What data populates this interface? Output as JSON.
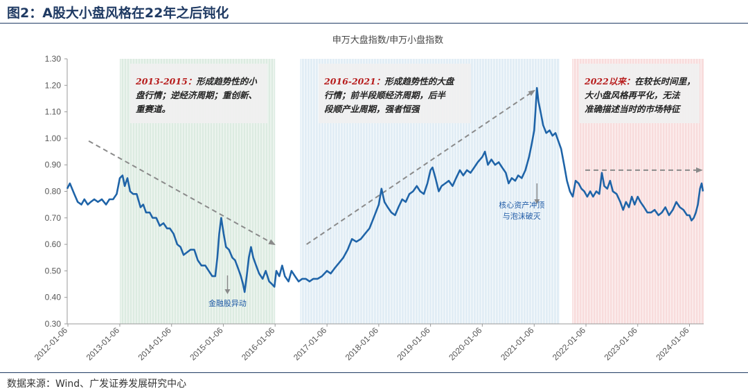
{
  "figure": {
    "title": "图2：A股大小盘风格在22年之后钝化",
    "source": "数据来源：Wind、广发证券发展研究中心"
  },
  "colors": {
    "line": "#1f64a8",
    "shade_green": "#dcebe1",
    "shade_blue": "#e1edf5",
    "shade_red": "#f8dcdc",
    "arrow": "#8a8a8a",
    "title_blue": "#1f3a63",
    "highlight_red": "#b71c1c"
  },
  "chart_data": {
    "type": "line",
    "title": "申万大盘指数/申万小盘指数",
    "xlabel": "",
    "ylabel": "",
    "ylim": [
      0.3,
      1.3
    ],
    "yticks": [
      "0.30",
      "0.40",
      "0.50",
      "0.60",
      "0.70",
      "0.80",
      "0.90",
      "1.00",
      "1.10",
      "1.20",
      "1.30"
    ],
    "xlim": [
      "2012-01-01",
      "2024-04-15"
    ],
    "xticks": [
      "2012-01-06",
      "2013-01-06",
      "2014-01-06",
      "2015-01-06",
      "2016-01-06",
      "2017-01-06",
      "2018-01-06",
      "2019-01-06",
      "2020-01-06",
      "2021-01-06",
      "2022-01-06",
      "2023-01-06",
      "2024-01-06"
    ],
    "grid": false,
    "legend": "none",
    "shaded_periods": [
      {
        "name": "2013-2015",
        "start": "2013-01-06",
        "end": "2016-01-06",
        "color": "green"
      },
      {
        "name": "2016-2021",
        "start": "2016-07-01",
        "end": "2021-07-01",
        "color": "blue"
      },
      {
        "name": "2022以来",
        "start": "2021-10-01",
        "end": "2024-04-15",
        "color": "red"
      }
    ],
    "annotations": [
      {
        "head": "2013-2015：",
        "text": [
          "形成趋势性的小",
          "盘行情；逆经济周期；重创新、",
          "重赛道。"
        ]
      },
      {
        "head": "2016-2021：",
        "text": [
          "形成趋势性的大盘",
          "行情；前半段顺经济周期，后半",
          "段顺产业周期，强者恒强"
        ]
      },
      {
        "head": "2022以来：",
        "text": [
          "在较长时间里，",
          "大小盘风格再平化，无法",
          "准确描述当时的市场特征"
        ]
      }
    ],
    "event_labels": [
      {
        "text": "金融股异动",
        "date": "2015-01-06"
      },
      {
        "text": "核心资产冲顶",
        "date": "2021-01-06"
      },
      {
        "text": "与泡沫破灭",
        "date": "2021-01-06"
      }
    ],
    "trend_arrows": [
      {
        "from": [
          "2012-06-01",
          0.99
        ],
        "to": [
          "2016-01-01",
          0.6
        ]
      },
      {
        "from": [
          "2016-08-15",
          0.6
        ],
        "to": [
          "2021-01-06",
          1.18
        ]
      },
      {
        "from": [
          "2022-01-01",
          0.88
        ],
        "to": [
          "2024-03-31",
          0.88
        ]
      }
    ],
    "series": [
      {
        "points": [
          [
            "2012-01-01",
            0.81
          ],
          [
            "2012-01-20",
            0.83
          ],
          [
            "2012-02-20",
            0.79
          ],
          [
            "2012-03-15",
            0.76
          ],
          [
            "2012-04-10",
            0.75
          ],
          [
            "2012-05-01",
            0.77
          ],
          [
            "2012-05-25",
            0.75
          ],
          [
            "2012-06-15",
            0.76
          ],
          [
            "2012-07-10",
            0.77
          ],
          [
            "2012-08-05",
            0.76
          ],
          [
            "2012-09-01",
            0.77
          ],
          [
            "2012-10-01",
            0.75
          ],
          [
            "2012-10-25",
            0.77
          ],
          [
            "2012-11-20",
            0.77
          ],
          [
            "2012-12-15",
            0.79
          ],
          [
            "2013-01-06",
            0.85
          ],
          [
            "2013-01-25",
            0.86
          ],
          [
            "2013-02-10",
            0.82
          ],
          [
            "2013-03-01",
            0.85
          ],
          [
            "2013-03-20",
            0.8
          ],
          [
            "2013-04-10",
            0.79
          ],
          [
            "2013-05-05",
            0.79
          ],
          [
            "2013-06-01",
            0.74
          ],
          [
            "2013-06-20",
            0.75
          ],
          [
            "2013-07-10",
            0.72
          ],
          [
            "2013-08-05",
            0.72
          ],
          [
            "2013-08-25",
            0.7
          ],
          [
            "2013-09-20",
            0.7
          ],
          [
            "2013-10-15",
            0.67
          ],
          [
            "2013-11-10",
            0.68
          ],
          [
            "2013-12-05",
            0.66
          ],
          [
            "2013-12-25",
            0.66
          ],
          [
            "2014-01-20",
            0.64
          ],
          [
            "2014-02-15",
            0.6
          ],
          [
            "2014-03-10",
            0.59
          ],
          [
            "2014-04-01",
            0.56
          ],
          [
            "2014-04-25",
            0.57
          ],
          [
            "2014-05-20",
            0.58
          ],
          [
            "2014-06-15",
            0.58
          ],
          [
            "2014-07-10",
            0.54
          ],
          [
            "2014-08-05",
            0.52
          ],
          [
            "2014-09-01",
            0.52
          ],
          [
            "2014-09-25",
            0.5
          ],
          [
            "2014-10-20",
            0.48
          ],
          [
            "2014-11-10",
            0.48
          ],
          [
            "2014-11-25",
            0.55
          ],
          [
            "2014-12-08",
            0.64
          ],
          [
            "2014-12-22",
            0.7
          ],
          [
            "2015-01-08",
            0.64
          ],
          [
            "2015-01-25",
            0.59
          ],
          [
            "2015-02-15",
            0.58
          ],
          [
            "2015-03-10",
            0.55
          ],
          [
            "2015-03-30",
            0.54
          ],
          [
            "2015-04-20",
            0.51
          ],
          [
            "2015-05-10",
            0.48
          ],
          [
            "2015-05-25",
            0.45
          ],
          [
            "2015-06-05",
            0.42
          ],
          [
            "2015-06-20",
            0.48
          ],
          [
            "2015-07-05",
            0.55
          ],
          [
            "2015-07-20",
            0.59
          ],
          [
            "2015-08-05",
            0.55
          ],
          [
            "2015-08-25",
            0.52
          ],
          [
            "2015-09-15",
            0.49
          ],
          [
            "2015-10-10",
            0.47
          ],
          [
            "2015-11-01",
            0.5
          ],
          [
            "2015-11-25",
            0.46
          ],
          [
            "2015-12-15",
            0.45
          ],
          [
            "2016-01-01",
            0.44
          ],
          [
            "2016-01-15",
            0.5
          ],
          [
            "2016-02-05",
            0.48
          ],
          [
            "2016-02-25",
            0.52
          ],
          [
            "2016-03-15",
            0.48
          ],
          [
            "2016-04-10",
            0.46
          ],
          [
            "2016-05-01",
            0.5
          ],
          [
            "2016-05-25",
            0.48
          ],
          [
            "2016-06-20",
            0.46
          ],
          [
            "2016-07-15",
            0.47
          ],
          [
            "2016-08-10",
            0.47
          ],
          [
            "2016-09-05",
            0.46
          ],
          [
            "2016-10-01",
            0.47
          ],
          [
            "2016-11-01",
            0.47
          ],
          [
            "2016-12-01",
            0.48
          ],
          [
            "2017-01-06",
            0.5
          ],
          [
            "2017-02-01",
            0.49
          ],
          [
            "2017-03-01",
            0.51
          ],
          [
            "2017-04-01",
            0.53
          ],
          [
            "2017-05-01",
            0.55
          ],
          [
            "2017-06-01",
            0.58
          ],
          [
            "2017-07-01",
            0.62
          ],
          [
            "2017-08-01",
            0.61
          ],
          [
            "2017-09-01",
            0.62
          ],
          [
            "2017-10-01",
            0.64
          ],
          [
            "2017-11-01",
            0.66
          ],
          [
            "2017-12-01",
            0.7
          ],
          [
            "2018-01-06",
            0.75
          ],
          [
            "2018-01-25",
            0.81
          ],
          [
            "2018-02-15",
            0.76
          ],
          [
            "2018-03-10",
            0.74
          ],
          [
            "2018-04-05",
            0.72
          ],
          [
            "2018-05-01",
            0.71
          ],
          [
            "2018-05-25",
            0.74
          ],
          [
            "2018-06-20",
            0.77
          ],
          [
            "2018-07-15",
            0.76
          ],
          [
            "2018-08-10",
            0.79
          ],
          [
            "2018-09-05",
            0.8
          ],
          [
            "2018-10-01",
            0.82
          ],
          [
            "2018-10-25",
            0.8
          ],
          [
            "2018-11-20",
            0.79
          ],
          [
            "2018-12-15",
            0.83
          ],
          [
            "2019-01-06",
            0.88
          ],
          [
            "2019-01-20",
            0.89
          ],
          [
            "2019-02-10",
            0.85
          ],
          [
            "2019-03-05",
            0.8
          ],
          [
            "2019-03-25",
            0.82
          ],
          [
            "2019-04-20",
            0.83
          ],
          [
            "2019-05-15",
            0.84
          ],
          [
            "2019-06-10",
            0.82
          ],
          [
            "2019-07-05",
            0.85
          ],
          [
            "2019-08-01",
            0.88
          ],
          [
            "2019-08-25",
            0.86
          ],
          [
            "2019-09-20",
            0.88
          ],
          [
            "2019-10-15",
            0.87
          ],
          [
            "2019-11-10",
            0.89
          ],
          [
            "2019-12-05",
            0.91
          ],
          [
            "2020-01-06",
            0.93
          ],
          [
            "2020-01-25",
            0.95
          ],
          [
            "2020-02-15",
            0.9
          ],
          [
            "2020-03-10",
            0.92
          ],
          [
            "2020-04-05",
            0.9
          ],
          [
            "2020-05-01",
            0.91
          ],
          [
            "2020-05-25",
            0.89
          ],
          [
            "2020-06-20",
            0.87
          ],
          [
            "2020-07-10",
            0.83
          ],
          [
            "2020-08-01",
            0.85
          ],
          [
            "2020-08-25",
            0.84
          ],
          [
            "2020-09-15",
            0.86
          ],
          [
            "2020-10-10",
            0.85
          ],
          [
            "2020-11-05",
            0.88
          ],
          [
            "2020-12-01",
            0.93
          ],
          [
            "2020-12-20",
            0.98
          ],
          [
            "2021-01-06",
            1.03
          ],
          [
            "2021-01-15",
            1.1
          ],
          [
            "2021-01-25",
            1.19
          ],
          [
            "2021-02-05",
            1.14
          ],
          [
            "2021-02-20",
            1.1
          ],
          [
            "2021-03-10",
            1.05
          ],
          [
            "2021-04-01",
            1.02
          ],
          [
            "2021-04-25",
            1.03
          ],
          [
            "2021-05-15",
            1.01
          ],
          [
            "2021-06-05",
            1.02
          ],
          [
            "2021-06-25",
            0.99
          ],
          [
            "2021-07-15",
            0.96
          ],
          [
            "2021-08-05",
            0.9
          ],
          [
            "2021-08-25",
            0.84
          ],
          [
            "2021-09-15",
            0.8
          ],
          [
            "2021-10-05",
            0.78
          ],
          [
            "2021-10-25",
            0.84
          ],
          [
            "2021-11-15",
            0.83
          ],
          [
            "2021-12-05",
            0.81
          ],
          [
            "2021-12-25",
            0.8
          ],
          [
            "2022-01-15",
            0.78
          ],
          [
            "2022-02-05",
            0.8
          ],
          [
            "2022-02-25",
            0.78
          ],
          [
            "2022-03-20",
            0.8
          ],
          [
            "2022-04-10",
            0.79
          ],
          [
            "2022-04-28",
            0.87
          ],
          [
            "2022-05-15",
            0.82
          ],
          [
            "2022-06-05",
            0.81
          ],
          [
            "2022-06-25",
            0.84
          ],
          [
            "2022-07-15",
            0.8
          ],
          [
            "2022-08-10",
            0.79
          ],
          [
            "2022-09-05",
            0.76
          ],
          [
            "2022-09-25",
            0.73
          ],
          [
            "2022-10-15",
            0.76
          ],
          [
            "2022-11-05",
            0.74
          ],
          [
            "2022-11-25",
            0.78
          ],
          [
            "2022-12-15",
            0.75
          ],
          [
            "2023-01-06",
            0.78
          ],
          [
            "2023-01-25",
            0.76
          ],
          [
            "2023-02-20",
            0.74
          ],
          [
            "2023-03-15",
            0.72
          ],
          [
            "2023-04-10",
            0.72
          ],
          [
            "2023-05-05",
            0.73
          ],
          [
            "2023-06-01",
            0.71
          ],
          [
            "2023-06-25",
            0.72
          ],
          [
            "2023-07-20",
            0.74
          ],
          [
            "2023-08-15",
            0.71
          ],
          [
            "2023-09-10",
            0.73
          ],
          [
            "2023-10-05",
            0.76
          ],
          [
            "2023-10-30",
            0.74
          ],
          [
            "2023-11-25",
            0.73
          ],
          [
            "2023-12-20",
            0.71
          ],
          [
            "2024-01-06",
            0.71
          ],
          [
            "2024-01-20",
            0.69
          ],
          [
            "2024-02-05",
            0.7
          ],
          [
            "2024-02-20",
            0.72
          ],
          [
            "2024-03-05",
            0.75
          ],
          [
            "2024-03-20",
            0.81
          ],
          [
            "2024-04-01",
            0.83
          ],
          [
            "2024-04-10",
            0.8
          ]
        ]
      }
    ]
  }
}
